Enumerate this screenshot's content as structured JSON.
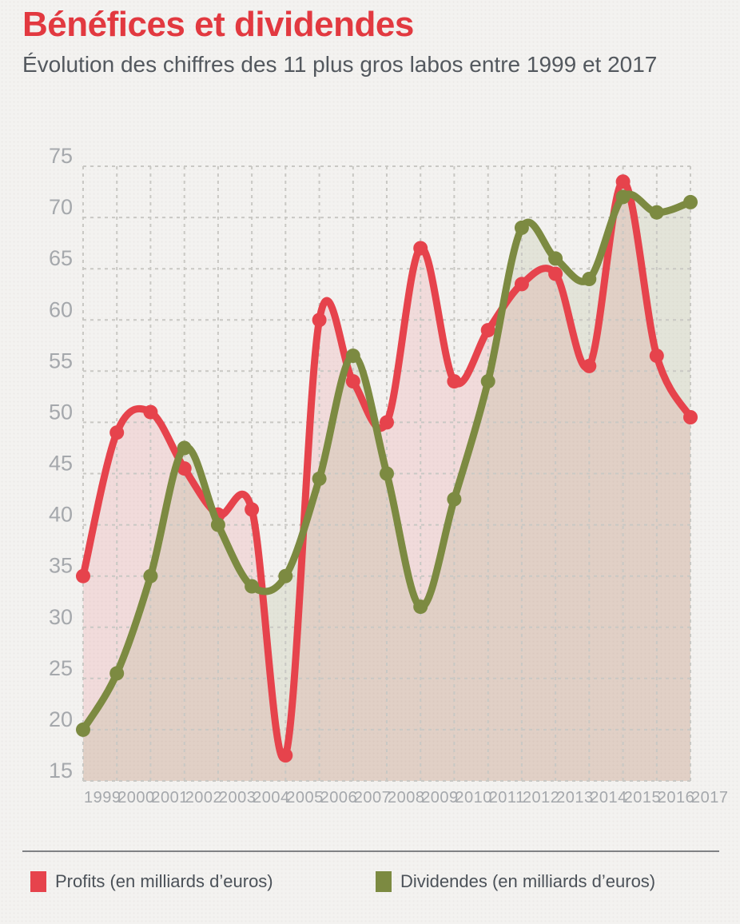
{
  "header": {
    "title": "Bénéfices et dividendes",
    "subtitle": "Évolution des chiffres des 11 plus gros labos entre 1999 et 2017"
  },
  "legend": {
    "items": [
      {
        "label": "Profits (en milliards d’euros)",
        "color": "#e6434c"
      },
      {
        "label": "Dividendes (en milliards d’euros)",
        "color": "#7c8a41"
      }
    ]
  },
  "chart_data": {
    "type": "line",
    "x": [
      1999,
      2000,
      2001,
      2002,
      2003,
      2004,
      2005,
      2006,
      2007,
      2008,
      2009,
      2010,
      2011,
      2012,
      2013,
      2014,
      2015,
      2016,
      2017
    ],
    "series": [
      {
        "id": "profits",
        "name": "Profits (en milliards d’euros)",
        "color": "#e6434c",
        "fill_color": "rgba(230,67,76,0.13)",
        "values": [
          35,
          49,
          51,
          45.5,
          41,
          41.5,
          17.5,
          60,
          54,
          50,
          67,
          54,
          59,
          63.5,
          64.5,
          55.5,
          73.5,
          56.5,
          50.5
        ]
      },
      {
        "id": "dividendes",
        "name": "Dividendes (en milliards d’euros)",
        "color": "#7c8a41",
        "fill_color": "rgba(124,138,65,0.13)",
        "values": [
          20,
          25.5,
          35,
          47.5,
          40,
          34,
          35,
          44.5,
          56.5,
          45,
          32,
          42.5,
          54,
          69,
          66,
          64,
          72,
          70.5,
          71.5
        ]
      }
    ],
    "ylim": [
      15,
      75
    ],
    "yticks": [
      15,
      20,
      25,
      30,
      35,
      40,
      45,
      50,
      55,
      60,
      65,
      70,
      75
    ],
    "xlabel": "",
    "ylabel": "",
    "grid": "dashed",
    "legend_position": "bottom",
    "marker": "circle",
    "smooth": true
  }
}
